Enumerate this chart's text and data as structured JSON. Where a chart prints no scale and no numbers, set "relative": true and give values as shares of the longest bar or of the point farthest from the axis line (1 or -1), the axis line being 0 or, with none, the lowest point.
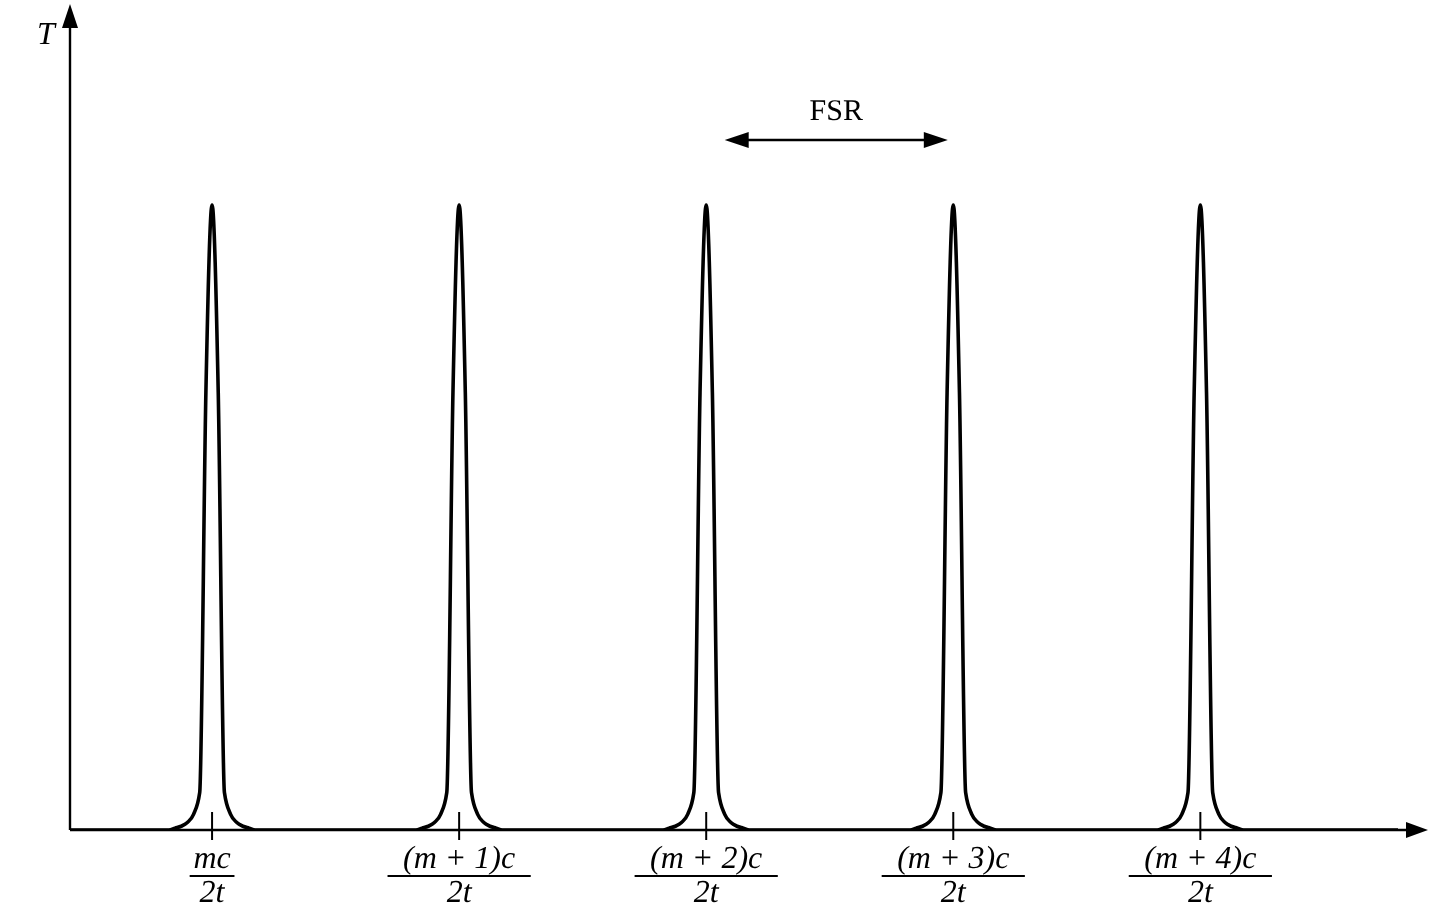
{
  "chart_data": {
    "type": "line",
    "ylabel": "T",
    "relative": true,
    "marker": "none",
    "line_style": "solid",
    "annotations": [
      "FSR"
    ],
    "categories": [
      null,
      null,
      null,
      null,
      null,
      null,
      null,
      null,
      null,
      null,
      null,
      null,
      null,
      null,
      null,
      null,
      null,
      null,
      null,
      null,
      null,
      null,
      null,
      "mc\n2t",
      null,
      null,
      null,
      null,
      null,
      null,
      null,
      null,
      null,
      null,
      null,
      null,
      null,
      null,
      null,
      null,
      null,
      null,
      null,
      null,
      null,
      null,
      null,
      null,
      null,
      null,
      null,
      null,
      null,
      null,
      null,
      null,
      null,
      null,
      null,
      null,
      null,
      null,
      null,
      "(m + 1)c\n2t",
      null,
      null,
      null,
      null,
      null,
      null,
      null,
      null,
      null,
      null,
      null,
      null,
      null,
      null,
      null,
      null,
      null,
      null,
      null,
      null,
      null,
      null,
      null,
      null,
      null,
      null,
      null,
      null,
      null,
      null,
      null,
      null,
      null,
      null,
      null,
      null,
      null,
      null,
      null,
      "(m + 2)c\n2t",
      null,
      null,
      null,
      null,
      null,
      null,
      null,
      null,
      null,
      null,
      null,
      null,
      null,
      null,
      null,
      null,
      null,
      null,
      null,
      null,
      null,
      null,
      null,
      null,
      null,
      null,
      null,
      null,
      null,
      null,
      null,
      null,
      null,
      null,
      null,
      null,
      null,
      null,
      null,
      "(m + 3)c\n2t",
      null,
      null,
      null,
      null,
      null,
      null,
      null,
      null,
      null,
      null,
      null,
      null,
      null,
      null,
      null,
      null,
      null,
      null,
      null,
      null,
      null,
      null,
      null,
      null,
      null,
      null,
      null,
      null,
      null,
      null,
      null,
      null,
      null,
      null,
      null,
      null,
      null,
      null,
      null,
      "(m + 4)c\n2t",
      null,
      null,
      null,
      null,
      null,
      null,
      null,
      null,
      null,
      null,
      null,
      null,
      null,
      null,
      null,
      null,
      null,
      null,
      null,
      null,
      null,
      null,
      null,
      null,
      null,
      null,
      null,
      null,
      null,
      null,
      null,
      null
    ],
    "series": [
      {
        "color": "#000000",
        "values": [
          0,
          0,
          0,
          0,
          0,
          0,
          0,
          0,
          0,
          0,
          0,
          0,
          0,
          0,
          0,
          0,
          0,
          0.003,
          0.006,
          0.012,
          0.025,
          0.06,
          0.7,
          1,
          0.7,
          0.06,
          0.025,
          0.012,
          0.006,
          0.003,
          0,
          0,
          0,
          0,
          0,
          0,
          0,
          0,
          0,
          0,
          0,
          0,
          0,
          0,
          0,
          0,
          0,
          0,
          0,
          0,
          0,
          0,
          0,
          0,
          0,
          0,
          0,
          0.003,
          0.006,
          0.012,
          0.025,
          0.06,
          0.7,
          1,
          0.7,
          0.06,
          0.025,
          0.012,
          0.006,
          0.003,
          0,
          0,
          0,
          0,
          0,
          0,
          0,
          0,
          0,
          0,
          0,
          0,
          0,
          0,
          0,
          0,
          0,
          0,
          0,
          0,
          0,
          0,
          0,
          0,
          0,
          0,
          0,
          0.003,
          0.006,
          0.012,
          0.025,
          0.06,
          0.7,
          1,
          0.7,
          0.06,
          0.025,
          0.012,
          0.006,
          0.003,
          0,
          0,
          0,
          0,
          0,
          0,
          0,
          0,
          0,
          0,
          0,
          0,
          0,
          0,
          0,
          0,
          0,
          0,
          0,
          0,
          0,
          0,
          0,
          0,
          0,
          0,
          0,
          0.003,
          0.006,
          0.012,
          0.025,
          0.06,
          0.7,
          1,
          0.7,
          0.06,
          0.025,
          0.012,
          0.006,
          0.003,
          0,
          0,
          0,
          0,
          0,
          0,
          0,
          0,
          0,
          0,
          0,
          0,
          0,
          0,
          0,
          0,
          0,
          0,
          0,
          0,
          0,
          0,
          0,
          0,
          0,
          0,
          0,
          0.003,
          0.006,
          0.012,
          0.025,
          0.06,
          0.7,
          1,
          0.7,
          0.06,
          0.025,
          0.012,
          0.006,
          0.003,
          0,
          0,
          0,
          0,
          0,
          0,
          0,
          0,
          0,
          0,
          0,
          0,
          0,
          0,
          0,
          0,
          0,
          0,
          0,
          0,
          0,
          0,
          0,
          0,
          0,
          0
        ]
      }
    ]
  }
}
